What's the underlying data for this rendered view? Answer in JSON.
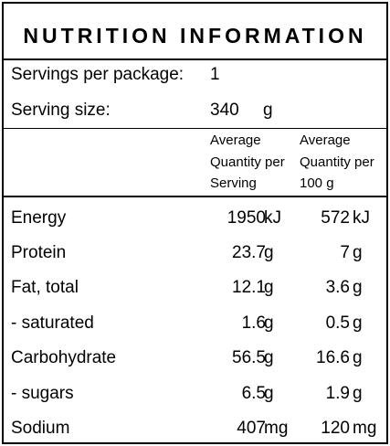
{
  "title": "NUTRITION INFORMATION",
  "servings": {
    "label": "Servings per package:",
    "value": "1"
  },
  "serving_size": {
    "label": "Serving size:",
    "value": "340",
    "unit": "g"
  },
  "headers": {
    "per_serving": [
      "Average",
      "Quantity per",
      "Serving"
    ],
    "per_100g": [
      "Average",
      "Quantity per",
      "100 g"
    ]
  },
  "rows": [
    {
      "name": "Energy",
      "serving": "1950",
      "serving_unit": "kJ",
      "per100": "572",
      "per100_unit": "kJ"
    },
    {
      "name": "Protein",
      "serving": "23.7",
      "serving_unit": "g",
      "per100": "7",
      "per100_unit": "g"
    },
    {
      "name": "Fat, total",
      "serving": "12.1",
      "serving_unit": "g",
      "per100": "3.6",
      "per100_unit": "g"
    },
    {
      "name": "- saturated",
      "serving": "1.6",
      "serving_unit": "g",
      "per100": "0.5",
      "per100_unit": "g"
    },
    {
      "name": "Carbohydrate",
      "serving": "56.5",
      "serving_unit": "g",
      "per100": "16.6",
      "per100_unit": "g"
    },
    {
      "name": "- sugars",
      "serving": "6.5",
      "serving_unit": "g",
      "per100": "1.9",
      "per100_unit": "g"
    },
    {
      "name": "Sodium",
      "serving": "407",
      "serving_unit": "mg",
      "per100": "120",
      "per100_unit": "mg"
    }
  ]
}
